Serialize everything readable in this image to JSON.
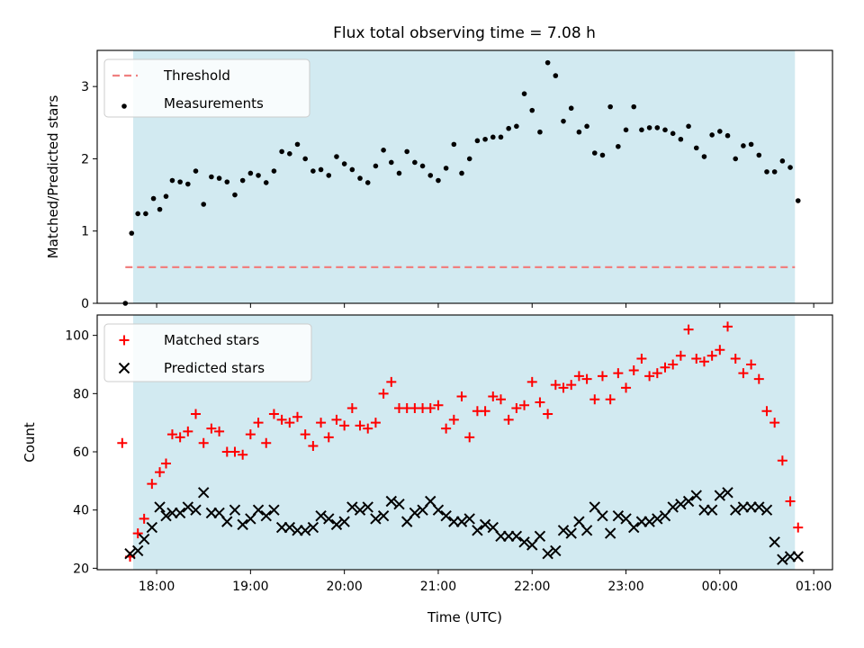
{
  "title": "Flux total observing time = 7.08 h",
  "colors": {
    "band": "#add8e6",
    "threshold": "#f08080",
    "measurement": "#000000",
    "matched": "#ff0000",
    "predicted": "#000000"
  },
  "chart_data": [
    {
      "type": "scatter",
      "panel": "top",
      "title": "Flux total observing time = 7.08 h",
      "xlabel": "",
      "ylabel": "Matched/Predicted stars",
      "xlim": [
        "17:22",
        "01:12"
      ],
      "ylim": [
        0,
        3.5
      ],
      "y_ticks": [
        0,
        1,
        2,
        3
      ],
      "x_ticks": [
        "18:00",
        "19:00",
        "20:00",
        "21:00",
        "22:00",
        "23:00",
        "00:00",
        "01:00"
      ],
      "x_tick_labels_visible": false,
      "grid": false,
      "legend_position": "top-left",
      "shaded_span": [
        "17:45",
        "00:48"
      ],
      "series": [
        {
          "name": "Threshold",
          "type": "line",
          "style": "dashed",
          "x": [
            "17:40",
            "00:48"
          ],
          "y": [
            0.5,
            0.5
          ]
        },
        {
          "name": "Measurements",
          "type": "scatter",
          "marker": "dot",
          "x": [
            "17:40",
            "17:44",
            "17:48",
            "17:53",
            "17:58",
            "18:02",
            "18:06",
            "18:10",
            "18:15",
            "18:20",
            "18:25",
            "18:30",
            "18:35",
            "18:40",
            "18:45",
            "18:50",
            "18:55",
            "19:00",
            "19:05",
            "19:10",
            "19:15",
            "19:20",
            "19:25",
            "19:30",
            "19:35",
            "19:40",
            "19:45",
            "19:50",
            "19:55",
            "20:00",
            "20:05",
            "20:10",
            "20:15",
            "20:20",
            "20:25",
            "20:30",
            "20:35",
            "20:40",
            "20:45",
            "20:50",
            "20:55",
            "21:00",
            "21:05",
            "21:10",
            "21:15",
            "21:20",
            "21:25",
            "21:30",
            "21:35",
            "21:40",
            "21:45",
            "21:50",
            "21:55",
            "22:00",
            "22:05",
            "22:10",
            "22:15",
            "22:20",
            "22:25",
            "22:30",
            "22:35",
            "22:40",
            "22:45",
            "22:50",
            "22:55",
            "23:00",
            "23:05",
            "23:10",
            "23:15",
            "23:20",
            "23:25",
            "23:30",
            "23:35",
            "23:40",
            "23:45",
            "23:50",
            "23:55",
            "00:00",
            "00:05",
            "00:10",
            "00:15",
            "00:20",
            "00:25",
            "00:30",
            "00:35",
            "00:40",
            "00:45",
            "00:50"
          ],
          "y": [
            0.0,
            0.97,
            1.24,
            1.24,
            1.45,
            1.3,
            1.48,
            1.7,
            1.68,
            1.65,
            1.83,
            1.37,
            1.75,
            1.73,
            1.68,
            1.5,
            1.7,
            1.8,
            1.77,
            1.67,
            1.83,
            2.1,
            2.07,
            2.2,
            2.0,
            1.83,
            1.85,
            1.77,
            2.03,
            1.93,
            1.85,
            1.73,
            1.67,
            1.9,
            2.12,
            1.95,
            1.8,
            2.1,
            1.95,
            1.9,
            1.77,
            1.7,
            1.87,
            2.2,
            1.8,
            2.0,
            2.25,
            2.27,
            2.3,
            2.3,
            2.42,
            2.45,
            2.9,
            2.67,
            2.37,
            3.33,
            3.15,
            2.52,
            2.7,
            2.37,
            2.45,
            2.08,
            2.05,
            2.72,
            2.17,
            2.4,
            2.72,
            2.4,
            2.43,
            2.43,
            2.4,
            2.35,
            2.27,
            2.45,
            2.15,
            2.03,
            2.33,
            2.38,
            2.32,
            2.0,
            2.18,
            2.2,
            2.05,
            1.82,
            1.82,
            1.97,
            1.88,
            1.42
          ]
        }
      ]
    },
    {
      "type": "scatter",
      "panel": "bottom",
      "xlabel": "Time (UTC)",
      "ylabel": "Count",
      "xlim": [
        "17:22",
        "01:12"
      ],
      "ylim": [
        19.5,
        107
      ],
      "y_ticks": [
        20,
        40,
        60,
        80,
        100
      ],
      "x_ticks": [
        "18:00",
        "19:00",
        "20:00",
        "21:00",
        "22:00",
        "23:00",
        "00:00",
        "01:00"
      ],
      "grid": false,
      "legend_position": "top-left",
      "shaded_span": [
        "17:45",
        "00:48"
      ],
      "series": [
        {
          "name": "Matched stars",
          "marker": "plus",
          "x": [
            "17:38",
            "17:43",
            "17:48",
            "17:52",
            "17:57",
            "18:02",
            "18:06",
            "18:10",
            "18:15",
            "18:20",
            "18:25",
            "18:30",
            "18:35",
            "18:40",
            "18:45",
            "18:50",
            "18:55",
            "19:00",
            "19:05",
            "19:10",
            "19:15",
            "19:20",
            "19:25",
            "19:30",
            "19:35",
            "19:40",
            "19:45",
            "19:50",
            "19:55",
            "20:00",
            "20:05",
            "20:10",
            "20:15",
            "20:20",
            "20:25",
            "20:30",
            "20:35",
            "20:40",
            "20:45",
            "20:50",
            "20:55",
            "21:00",
            "21:05",
            "21:10",
            "21:15",
            "21:20",
            "21:25",
            "21:30",
            "21:35",
            "21:40",
            "21:45",
            "21:50",
            "21:55",
            "22:00",
            "22:05",
            "22:10",
            "22:15",
            "22:20",
            "22:25",
            "22:30",
            "22:35",
            "22:40",
            "22:45",
            "22:50",
            "22:55",
            "23:00",
            "23:05",
            "23:10",
            "23:15",
            "23:20",
            "23:25",
            "23:30",
            "23:35",
            "23:40",
            "23:45",
            "23:50",
            "23:55",
            "00:00",
            "00:05",
            "00:10",
            "00:15",
            "00:20",
            "00:25",
            "00:30",
            "00:35",
            "00:40",
            "00:45",
            "00:50"
          ],
          "y": [
            63,
            24,
            32,
            37,
            49,
            53,
            56,
            66,
            65,
            67,
            73,
            63,
            68,
            67,
            60,
            60,
            59,
            66,
            70,
            63,
            73,
            71,
            70,
            72,
            66,
            62,
            70,
            65,
            71,
            69,
            75,
            69,
            68,
            70,
            80,
            84,
            75,
            75,
            75,
            75,
            75,
            76,
            68,
            71,
            79,
            65,
            74,
            74,
            79,
            78,
            71,
            75,
            76,
            84,
            77,
            73,
            83,
            82,
            83,
            86,
            85,
            78,
            86,
            78,
            87,
            82,
            88,
            92,
            86,
            87,
            89,
            90,
            93,
            102,
            92,
            91,
            93,
            95,
            103,
            92,
            87,
            90,
            85,
            74,
            70,
            57,
            43,
            34
          ]
        },
        {
          "name": "Predicted stars",
          "marker": "x",
          "x": [
            "17:43",
            "17:48",
            "17:52",
            "17:57",
            "18:02",
            "18:06",
            "18:10",
            "18:15",
            "18:20",
            "18:25",
            "18:30",
            "18:35",
            "18:40",
            "18:45",
            "18:50",
            "18:55",
            "19:00",
            "19:05",
            "19:10",
            "19:15",
            "19:20",
            "19:25",
            "19:30",
            "19:35",
            "19:40",
            "19:45",
            "19:50",
            "19:55",
            "20:00",
            "20:05",
            "20:10",
            "20:15",
            "20:20",
            "20:25",
            "20:30",
            "20:35",
            "20:40",
            "20:45",
            "20:50",
            "20:55",
            "21:00",
            "21:05",
            "21:10",
            "21:15",
            "21:20",
            "21:25",
            "21:30",
            "21:35",
            "21:40",
            "21:45",
            "21:50",
            "21:55",
            "22:00",
            "22:05",
            "22:10",
            "22:15",
            "22:20",
            "22:25",
            "22:30",
            "22:35",
            "22:40",
            "22:45",
            "22:50",
            "22:55",
            "23:00",
            "23:05",
            "23:10",
            "23:15",
            "23:20",
            "23:25",
            "23:30",
            "23:35",
            "23:40",
            "23:45",
            "23:50",
            "23:55",
            "00:00",
            "00:05",
            "00:10",
            "00:15",
            "00:20",
            "00:25",
            "00:30",
            "00:35",
            "00:40",
            "00:45",
            "00:50"
          ],
          "y": [
            25,
            26,
            30,
            34,
            41,
            38,
            39,
            39,
            41,
            40,
            46,
            39,
            39,
            36,
            40,
            35,
            37,
            40,
            38,
            40,
            34,
            34,
            33,
            33,
            34,
            38,
            37,
            35,
            36,
            41,
            40,
            41,
            37,
            38,
            43,
            42,
            36,
            39,
            40,
            43,
            40,
            38,
            36,
            36,
            37,
            33,
            35,
            34,
            31,
            31,
            31,
            29,
            28,
            31,
            25,
            26,
            33,
            32,
            36,
            33,
            41,
            38,
            32,
            38,
            37,
            34,
            36,
            36,
            37,
            38,
            41,
            42,
            43,
            45,
            40,
            40,
            45,
            46,
            40,
            41,
            41,
            41,
            40,
            29,
            23,
            24,
            24
          ]
        }
      ]
    }
  ]
}
